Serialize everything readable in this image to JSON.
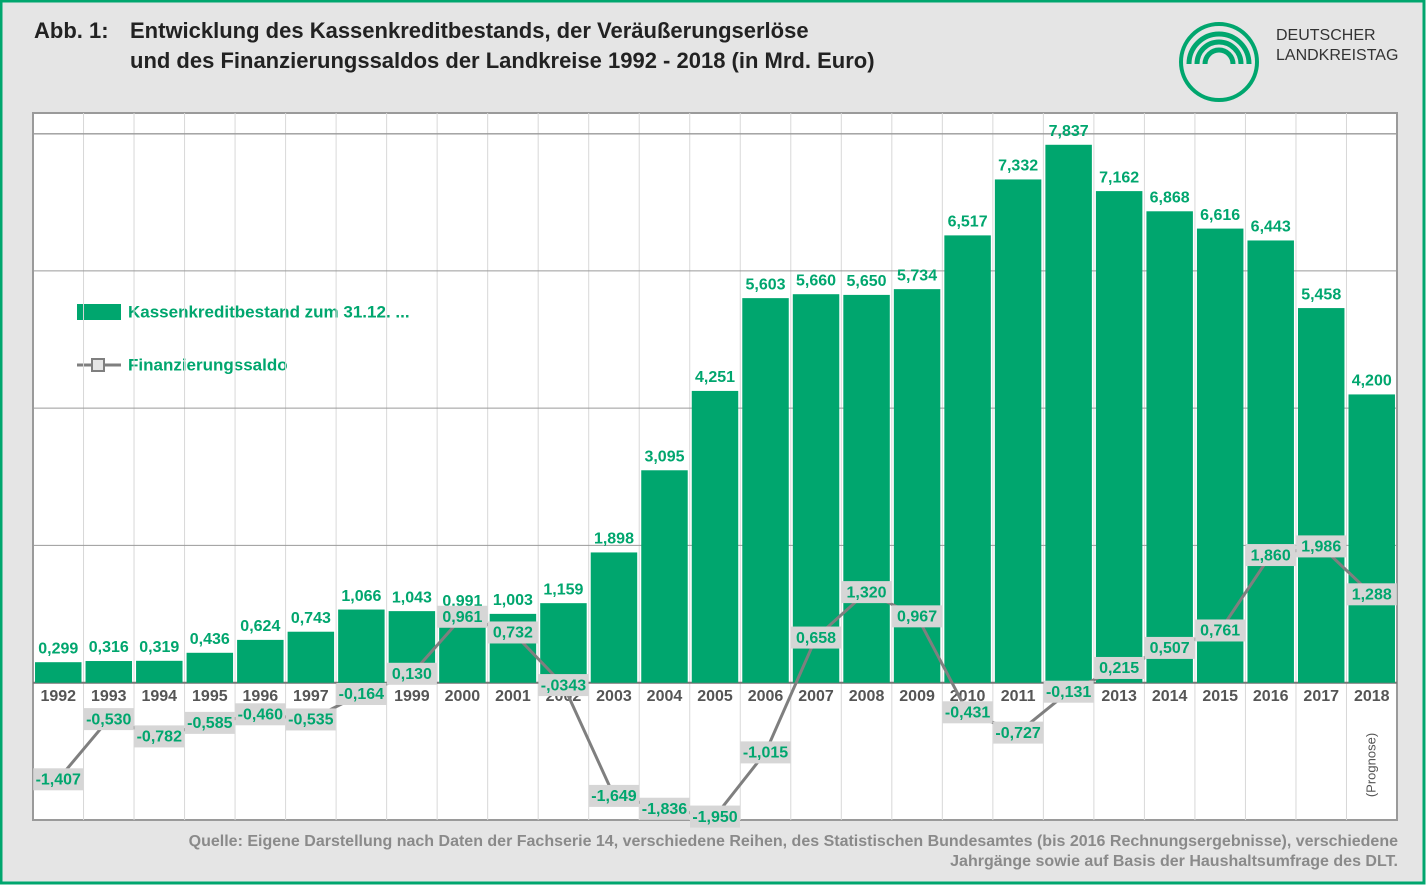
{
  "chart_data": {
    "type": "bar",
    "label": "Abb. 1:",
    "title": [
      "Entwicklung des Kassenkreditbestands, der Veräußerungserlöse",
      "und des Finanzierungssaldos der Landkreise 1992 - 2018 (in Mrd. Euro)"
    ],
    "logo": [
      "DEUTSCHER",
      "LANDKREISTAG"
    ],
    "categories": [
      "1992",
      "1993",
      "1994",
      "1995",
      "1996",
      "1997",
      "1998",
      "1999",
      "2000",
      "2001",
      "2002",
      "2003",
      "2004",
      "2005",
      "2006",
      "2007",
      "2008",
      "2009",
      "2010",
      "2011",
      "2012",
      "2013",
      "2014",
      "2015",
      "2016",
      "2017",
      "2018"
    ],
    "series": [
      {
        "name": "Kassenkreditbestand zum 31.12. ...",
        "type": "bar",
        "color": "#00a66e",
        "values": [
          0.299,
          0.316,
          0.319,
          0.436,
          0.624,
          0.743,
          1.066,
          1.043,
          0.991,
          1.003,
          1.159,
          1.898,
          3.095,
          4.251,
          5.603,
          5.66,
          5.65,
          5.734,
          6.517,
          7.332,
          7.837,
          7.162,
          6.868,
          6.616,
          6.443,
          5.458,
          4.2
        ],
        "value_labels": [
          "0,299",
          "0,316",
          "0,319",
          "0,436",
          "0,624",
          "0,743",
          "1,066",
          "1,043",
          "0,991",
          "1,003",
          "1,159",
          "1,898",
          "3,095",
          "4,251",
          "5,603",
          "5,660",
          "5,650",
          "5,734",
          "6,517",
          "7,332",
          "7,837",
          "7,162",
          "6,868",
          "6,616",
          "6,443",
          "5,458",
          "4,200"
        ]
      },
      {
        "name": "Finanzierungssaldo",
        "type": "line",
        "color": "#7f7f7f",
        "values": [
          -1.407,
          -0.53,
          -0.782,
          -0.585,
          -0.46,
          -0.535,
          -0.164,
          0.13,
          0.961,
          0.732,
          -0.0343,
          -1.649,
          -1.836,
          -1.95,
          -1.015,
          0.658,
          1.32,
          0.967,
          -0.431,
          -0.727,
          -0.131,
          0.215,
          0.507,
          0.761,
          1.86,
          1.986,
          1.288
        ],
        "value_labels": [
          "-1,407",
          "-0,530",
          "-0,782",
          "-0,585",
          "-0,460",
          "-0,535",
          "-0,164",
          "0,130",
          "0,961",
          "0,732",
          "-,0343",
          "-1,649",
          "-1,836",
          "-1,950",
          "-1,015",
          "0,658",
          "1,320",
          "0,967",
          "-0,431",
          "-0,727",
          "-0,131",
          "0,215",
          "0,507",
          "0,761",
          "1,860",
          "1,986",
          "1,288"
        ]
      }
    ],
    "annotation": "(Prognose)",
    "ylim": [
      -2,
      8.3
    ],
    "yticks": [
      0,
      2,
      4,
      6,
      8
    ],
    "grid": true,
    "source": [
      "Quelle: Eigene Darstellung nach Daten der Fachserie 14, verschiedene Reihen, des Statistischen Bundesamtes (bis 2016 Rechnungsergebnisse), verschiedene",
      "Jahrgänge sowie auf Basis der Haushaltsumfrage des DLT."
    ]
  }
}
